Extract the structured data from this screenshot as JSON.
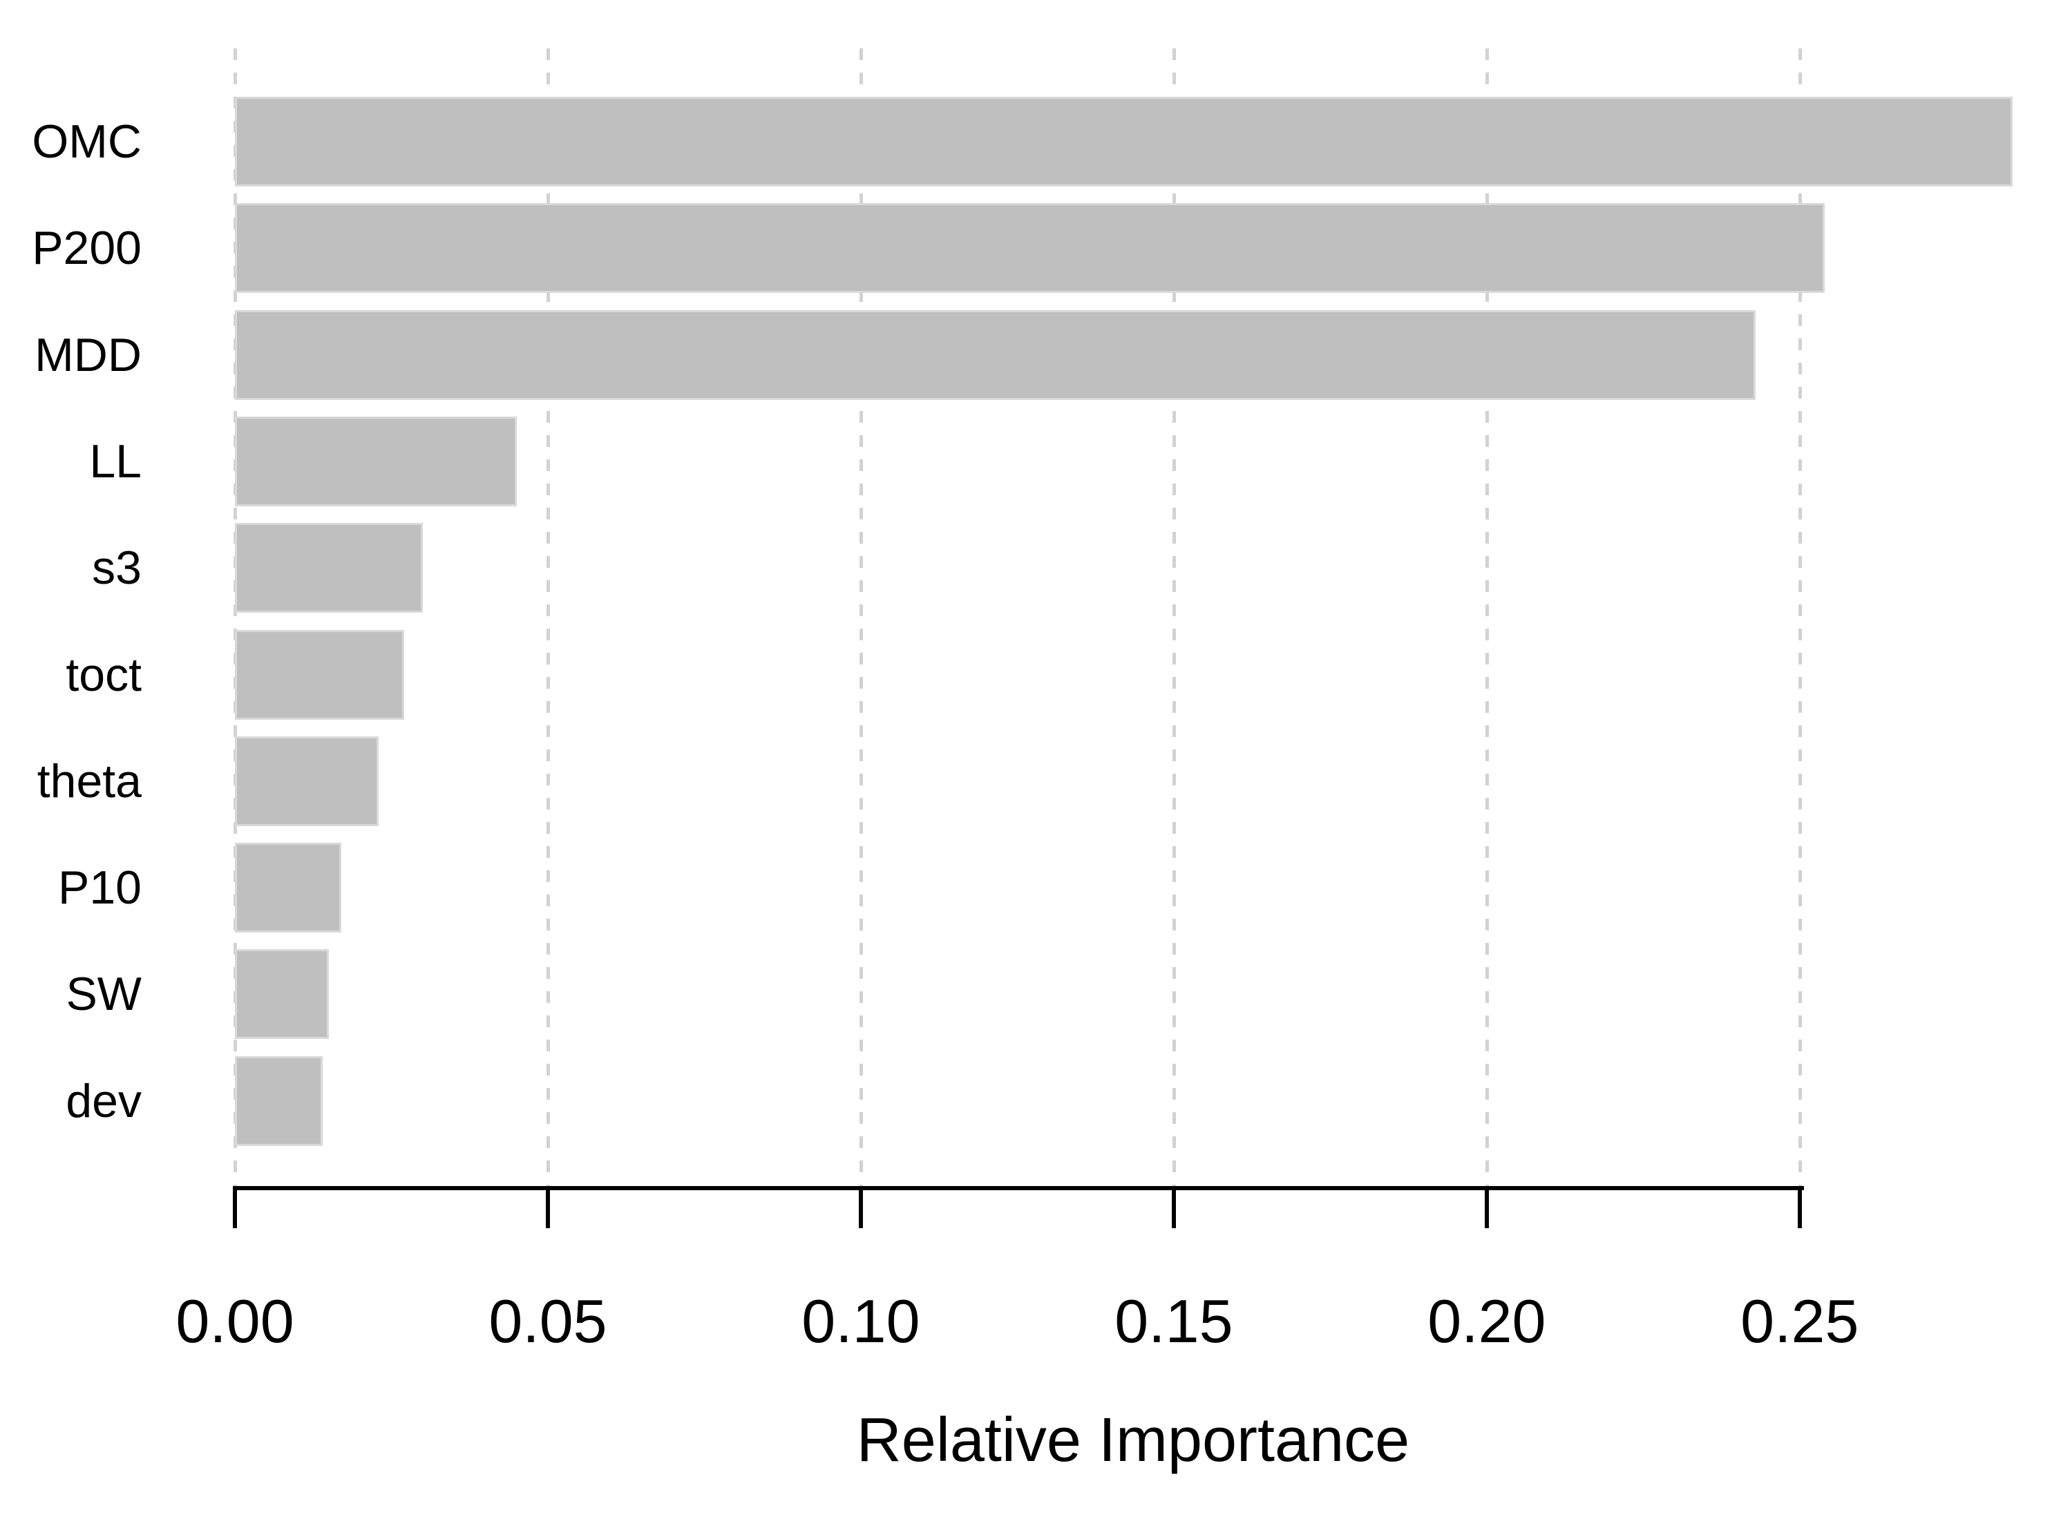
{
  "chart_data": {
    "type": "bar",
    "orientation": "horizontal",
    "title": "",
    "xlabel": "Relative Importance",
    "ylabel": "",
    "categories": [
      "OMC",
      "P200",
      "MDD",
      "LL",
      "s3",
      "toct",
      "theta",
      "P10",
      "SW",
      "dev"
    ],
    "values": [
      0.284,
      0.254,
      0.243,
      0.045,
      0.03,
      0.027,
      0.023,
      0.017,
      0.015,
      0.014
    ],
    "xlim": [
      0,
      0.287
    ],
    "xticks": [
      {
        "value": 0.0,
        "label": "0.00"
      },
      {
        "value": 0.05,
        "label": "0.05"
      },
      {
        "value": 0.1,
        "label": "0.10"
      },
      {
        "value": 0.15,
        "label": "0.15"
      },
      {
        "value": 0.2,
        "label": "0.20"
      },
      {
        "value": 0.25,
        "label": "0.25"
      }
    ],
    "grid": {
      "visible": true,
      "style": "dashed",
      "lines_at": [
        0.0,
        0.05,
        0.1,
        0.15,
        0.2,
        0.25
      ]
    },
    "legend": null,
    "colors": {
      "bar_fill": "#bfbfbf",
      "bar_border": "#d9d9d9",
      "gridline": "#d2d2d2",
      "axis": "#000000",
      "text": "#000000",
      "background": "#ffffff"
    }
  }
}
